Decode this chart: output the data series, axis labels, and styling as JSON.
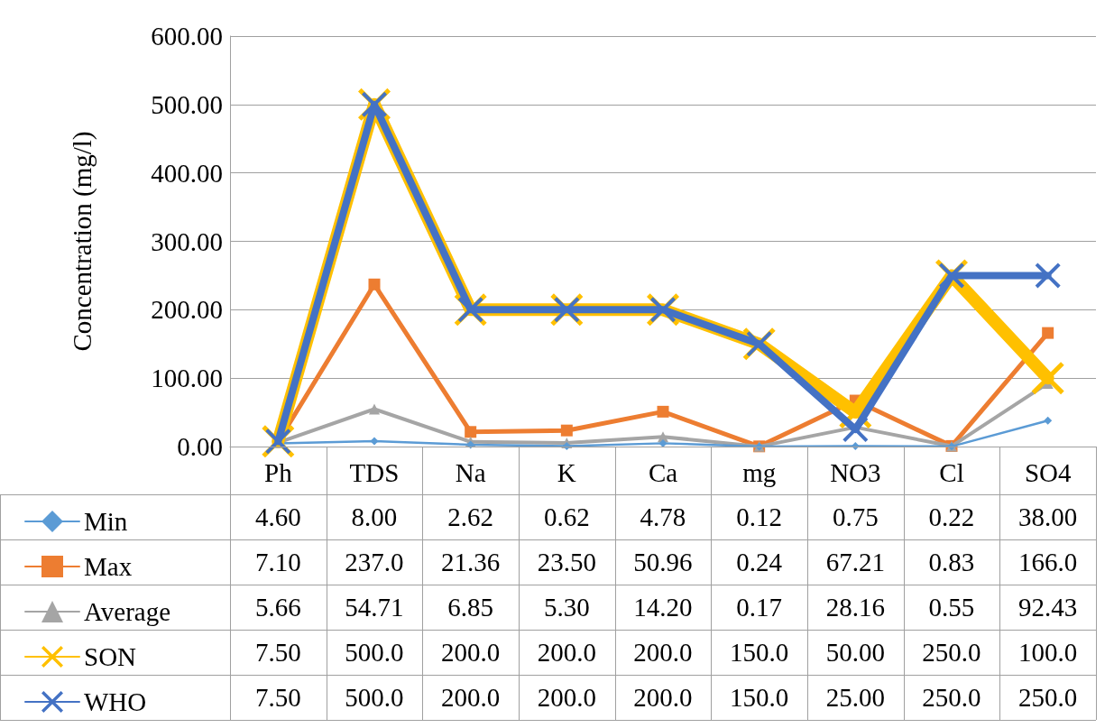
{
  "chart_data": {
    "type": "line",
    "ylabel": "Concentration (mg/l)",
    "categories": [
      "Ph",
      "TDS",
      "Na",
      "K",
      "Ca",
      "mg",
      "NO3",
      "Cl",
      "SO4"
    ],
    "series": [
      {
        "name": "Min",
        "color": "#5b9bd5",
        "marker": "diamond",
        "values": [
          4.6,
          8,
          2.62,
          0.62,
          4.78,
          0.12,
          0.75,
          0.22,
          38
        ],
        "value_labels": [
          "4.60",
          "8.00",
          "2.62",
          "0.62",
          "4.78",
          "0.12",
          "0.75",
          "0.22",
          "38.00"
        ]
      },
      {
        "name": "Max",
        "color": "#ed7d31",
        "marker": "square",
        "values": [
          7.1,
          237,
          21.36,
          23.5,
          50.96,
          0.24,
          67.21,
          0.83,
          166
        ],
        "value_labels": [
          "7.10",
          "237.0",
          "21.36",
          "23.50",
          "50.96",
          "0.24",
          "67.21",
          "0.83",
          "166.0"
        ]
      },
      {
        "name": "Average",
        "color": "#a5a5a5",
        "marker": "triangle",
        "values": [
          5.66,
          54.71,
          6.85,
          5.3,
          14.2,
          0.17,
          28.16,
          0.55,
          92.43
        ],
        "value_labels": [
          "5.66",
          "54.71",
          "6.85",
          "5.30",
          "14.20",
          "0.17",
          "28.16",
          "0.55",
          "92.43"
        ]
      },
      {
        "name": "SON",
        "color": "#ffc000",
        "marker": "cross",
        "values": [
          7.5,
          500,
          200,
          200,
          200,
          150,
          50,
          250,
          100
        ],
        "value_labels": [
          "7.50",
          "500.0",
          "200.0",
          "200.0",
          "200.0",
          "150.0",
          "50.00",
          "250.0",
          "100.0"
        ]
      },
      {
        "name": "WHO",
        "color": "#4472c4",
        "marker": "cross",
        "values": [
          7.5,
          500,
          200,
          200,
          200,
          150,
          25,
          250,
          250
        ],
        "value_labels": [
          "7.50",
          "500.0",
          "200.0",
          "200.0",
          "200.0",
          "150.0",
          "25.00",
          "250.0",
          "250.0"
        ]
      }
    ],
    "ylim": [
      0,
      600
    ],
    "yticks": [
      {
        "value": 0,
        "label": "0.00"
      },
      {
        "value": 100,
        "label": "100.00"
      },
      {
        "value": 200,
        "label": "200.00"
      },
      {
        "value": 300,
        "label": "300.00"
      },
      {
        "value": 400,
        "label": "400.00"
      },
      {
        "value": 500,
        "label": "500.00"
      },
      {
        "value": 600,
        "label": "600.00"
      }
    ],
    "grid": "y",
    "legend": "bottom left"
  }
}
